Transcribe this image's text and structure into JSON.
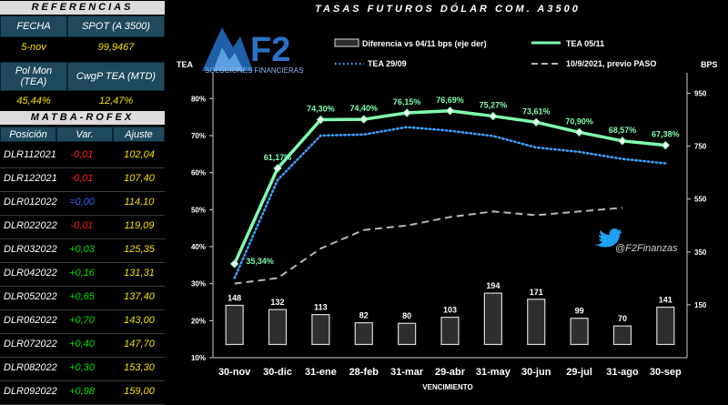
{
  "left_panel": {
    "referencias_title": "REFERENCIAS",
    "fecha_label": "FECHA",
    "spot_label": "SPOT (A 3500)",
    "fecha_value": "5-nov",
    "spot_value": "99,9467",
    "polmon_label": "Pol Mon (TEA)",
    "cwgp_label": "CwgP TEA (MTD)",
    "polmon_value": "45,44%",
    "cwgp_value": "12,47%",
    "matba_title": "MATBA-ROFEX",
    "col_posicion": "Posición",
    "col_var": "Var.",
    "col_ajuste": "Ajuste",
    "rows": [
      {
        "name": "DLR112021",
        "var": "-0,01",
        "sign": "neg",
        "adj": "102,04"
      },
      {
        "name": "DLR122021",
        "var": "-0,01",
        "sign": "neg",
        "adj": "107,40"
      },
      {
        "name": "DLR012022",
        "var": "=0,00",
        "sign": "zero",
        "adj": "114,10"
      },
      {
        "name": "DLR022022",
        "var": "-0,01",
        "sign": "neg",
        "adj": "119,09"
      },
      {
        "name": "DLR032022",
        "var": "+0,03",
        "sign": "pos",
        "adj": "125,35"
      },
      {
        "name": "DLR042022",
        "var": "+0,16",
        "sign": "pos",
        "adj": "131,31"
      },
      {
        "name": "DLR052022",
        "var": "+0,65",
        "sign": "pos",
        "adj": "137,40"
      },
      {
        "name": "DLR062022",
        "var": "+0,70",
        "sign": "pos",
        "adj": "143,00"
      },
      {
        "name": "DLR072022",
        "var": "+0,40",
        "sign": "pos",
        "adj": "147,70"
      },
      {
        "name": "DLR082022",
        "var": "+0,30",
        "sign": "pos",
        "adj": "153,30"
      },
      {
        "name": "DLR092022",
        "var": "+0,98",
        "sign": "pos",
        "adj": "159,00"
      }
    ]
  },
  "logo": {
    "brand": "F2",
    "tagline": "SOLUCIONES FINANCIERAS"
  },
  "social_handle": "@F2Finanzas",
  "chart_data": {
    "type": "bar",
    "title": "TASAS FUTUROS DÓLAR COM. A3500",
    "xlabel": "VENCIMIENTO",
    "ylabel": "TEA",
    "y2label": "BPS",
    "categories": [
      "30-nov",
      "30-dic",
      "31-ene",
      "28-feb",
      "31-mar",
      "29-abr",
      "31-may",
      "30-jun",
      "29-jul",
      "31-ago",
      "30-sep"
    ],
    "ylim": [
      10,
      85
    ],
    "yticks": [
      "10%",
      "20%",
      "30%",
      "40%",
      "50%",
      "60%",
      "70%",
      "80%"
    ],
    "y2lim": [
      -50,
      1000
    ],
    "y2ticks": [
      "150",
      "350",
      "550",
      "750",
      "950"
    ],
    "grid": false,
    "legend_position": "top",
    "series": [
      {
        "name": "Diferencia vs 04/11 bps (eje der)",
        "kind": "bar",
        "axis": "right",
        "color": "#d0d0d0",
        "values": [
          148,
          132,
          113,
          82,
          80,
          103,
          194,
          171,
          99,
          70,
          141
        ],
        "labels": [
          "148",
          "132",
          "113",
          "82",
          "80",
          "103",
          "194",
          "171",
          "99",
          "70",
          "141"
        ]
      },
      {
        "name": "TEA 05/11",
        "kind": "line",
        "axis": "left",
        "color": "#7fffb0",
        "values": [
          35.34,
          61.17,
          74.3,
          74.4,
          76.15,
          76.69,
          75.27,
          73.61,
          70.9,
          68.57,
          67.38
        ],
        "labels": [
          "35,34%",
          "61,17%",
          "74,30%",
          "74,40%",
          "76,15%",
          "76,69%",
          "75,27%",
          "73,61%",
          "70,90%",
          "68,57%",
          "67,38%"
        ]
      },
      {
        "name": "TEA 29/09",
        "kind": "dotted",
        "axis": "left",
        "color": "#3fa0ff",
        "values": [
          31.5,
          58.0,
          70.0,
          70.3,
          72.3,
          71.3,
          69.9,
          66.8,
          65.6,
          63.7,
          62.5
        ]
      },
      {
        "name": "10/9/2021, previo PASO",
        "kind": "dashed",
        "axis": "left",
        "color": "#b0b8c0",
        "values": [
          30.0,
          31.5,
          39.5,
          44.5,
          45.7,
          48.0,
          49.5,
          48.5,
          49.5,
          50.5,
          null
        ]
      }
    ]
  }
}
